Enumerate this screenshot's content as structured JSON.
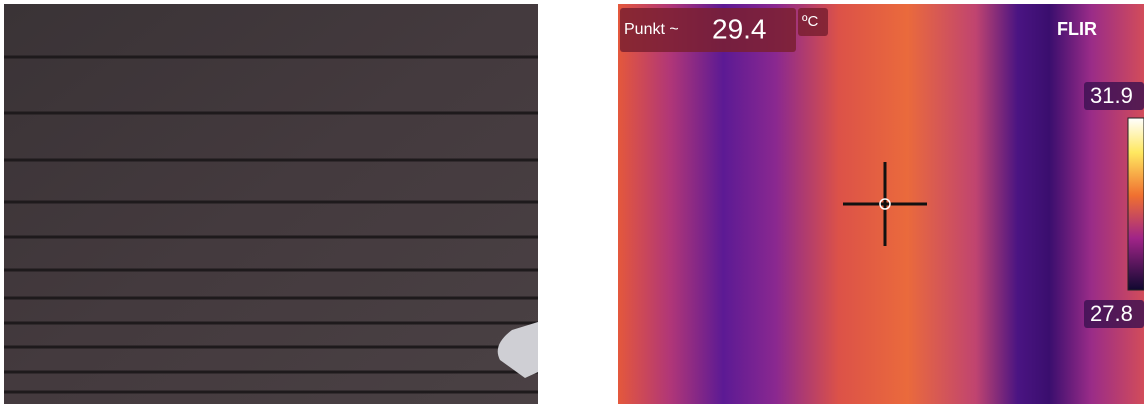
{
  "thermal": {
    "spot_label": "Punkt ~",
    "spot_value": 29.4,
    "unit": "ºC",
    "brand": "FLIR",
    "scale_max": 31.9,
    "scale_min": 27.8
  }
}
